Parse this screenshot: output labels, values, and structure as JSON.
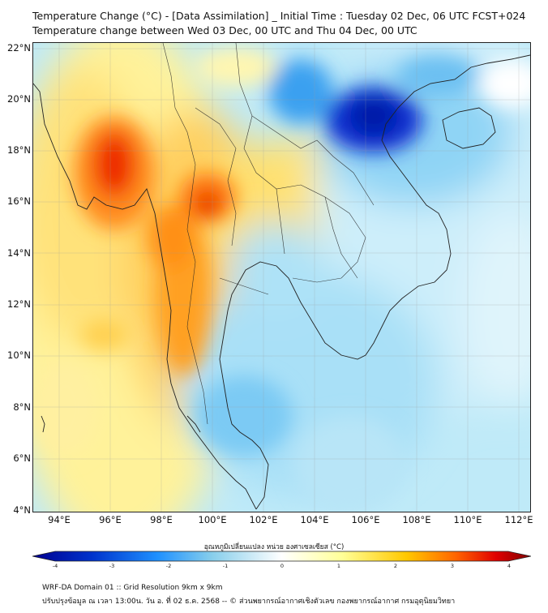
{
  "title_line1": "Temperature Change (°C) - [Data Assimilation] _ Initial Time : Tuesday 02 Dec, 06 UTC FCST+024",
  "title_line2": "Temperature change between Wed 03 Dec, 00 UTC and Thu 04 Dec, 00 UTC",
  "lat_labels": [
    "22°N",
    "20°N",
    "18°N",
    "16°N",
    "14°N",
    "12°N",
    "10°N",
    "8°N",
    "6°N",
    "4°N"
  ],
  "lon_labels": [
    "94°E",
    "96°E",
    "98°E",
    "100°E",
    "102°E",
    "104°E",
    "106°E",
    "108°E",
    "110°E",
    "112°E"
  ],
  "extent": {
    "lon": [
      93.0,
      112.5
    ],
    "lat": [
      4.0,
      22.2
    ]
  },
  "colorbar": {
    "title": "อุณหภูมิเปลี่ยนแปลง หน่วย องศาเซลเซียส (°C)",
    "min": -4,
    "max": 4,
    "tick_labels": [
      "-4",
      "-3",
      "-2",
      "-1",
      "0",
      "1",
      "2",
      "3",
      "4"
    ],
    "colors": [
      "#00008f",
      "#0033cc",
      "#1e90ff",
      "#87ceeb",
      "#ffffff",
      "#ffff99",
      "#ffc800",
      "#ff6400",
      "#e00000",
      "#800000"
    ]
  },
  "footer_line1": "WRF-DA Domain 01 :: Grid Resolution 9km x 9km",
  "footer_line2": "ปรับปรุงข้อมูล ณ เวลา 13:00น. วัน อ. ที่ 02 ธ.ค. 2568 -- © ส่วนพยากรณ์อากาศเชิงตัวเลข กองพยากรณ์อากาศ กรมอุตุนิยมวิทยา"
}
